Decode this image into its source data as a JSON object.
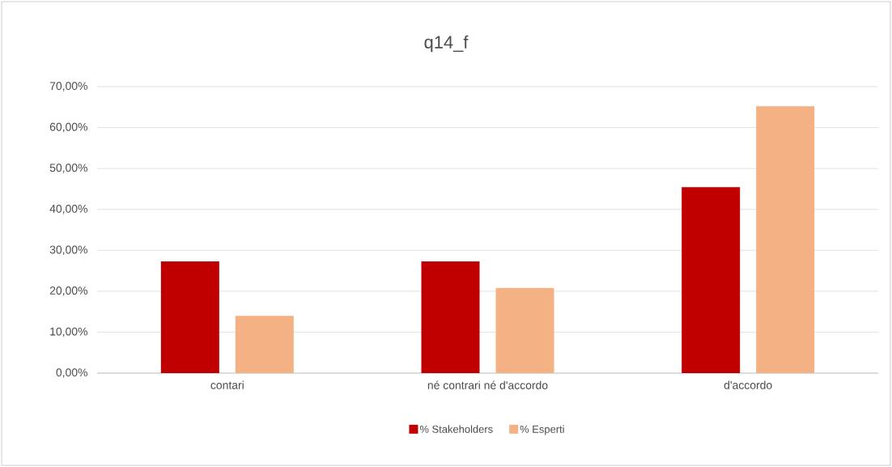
{
  "chart_data": {
    "type": "bar",
    "title": "q14_f",
    "categories": [
      "contari",
      "né contrari né d'accordo",
      "d'accordo"
    ],
    "series": [
      {
        "name": "% Stakeholders",
        "color": "#c00000",
        "values": [
          27.27,
          27.27,
          45.45
        ]
      },
      {
        "name": "% Esperti",
        "color": "#f4b183",
        "values": [
          14.0,
          20.8,
          65.2
        ]
      }
    ],
    "ylim": [
      0,
      70
    ],
    "yticks": [
      {
        "value": 0,
        "label": "0,00%"
      },
      {
        "value": 10,
        "label": "10,00%"
      },
      {
        "value": 20,
        "label": "20,00%"
      },
      {
        "value": 30,
        "label": "30,00%"
      },
      {
        "value": 40,
        "label": "40,00%"
      },
      {
        "value": 50,
        "label": "50,00%"
      },
      {
        "value": 60,
        "label": "60,00%"
      },
      {
        "value": 70,
        "label": "70,00%"
      }
    ],
    "grid": "y",
    "legend": "bottom"
  }
}
